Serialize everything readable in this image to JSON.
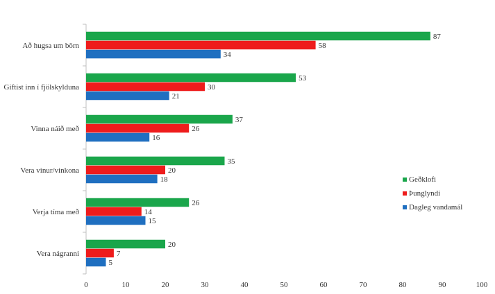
{
  "chart_data": {
    "type": "bar",
    "orientation": "horizontal",
    "categories": [
      "Að hugsa um börn",
      "Giftist inn í fjölskylduna",
      "Vinna náið með",
      "Vera vinur/vinkona",
      "Verja tíma með",
      "Vera nágranni"
    ],
    "series": [
      {
        "name": "Geðklofi",
        "color": "#1aa64b",
        "values": [
          87,
          53,
          37,
          35,
          26,
          20
        ]
      },
      {
        "name": "Þunglyndi",
        "color": "#ee1c1c",
        "values": [
          58,
          30,
          26,
          20,
          14,
          7
        ]
      },
      {
        "name": "Dagleg vandamál",
        "color": "#1f6fc0",
        "values": [
          34,
          21,
          16,
          18,
          15,
          5
        ]
      }
    ],
    "xlim": [
      0,
      100
    ],
    "xticks": [
      "0",
      "10",
      "20",
      "30",
      "40",
      "50",
      "60",
      "70",
      "80",
      "90",
      "100"
    ],
    "grid": false,
    "legend_position": "right",
    "title": "",
    "xlabel": "",
    "ylabel": ""
  }
}
